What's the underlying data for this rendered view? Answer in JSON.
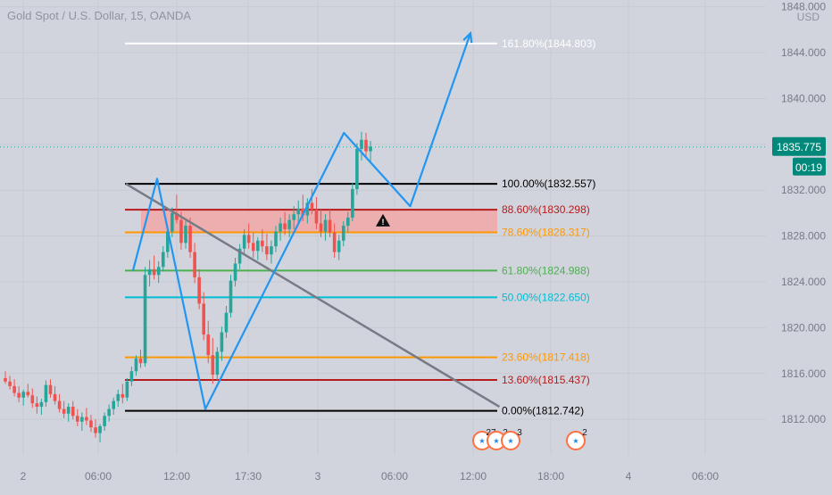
{
  "header": {
    "symbol_title": "Gold Spot / U.S. Dollar, 15, OANDA",
    "currency": "USD"
  },
  "price_tag": {
    "price": "1835.775",
    "countdown": "00:19",
    "color": "#00897b"
  },
  "chart_data": {
    "type": "candlestick",
    "title": "Gold Spot / U.S. Dollar, 15, OANDA",
    "ylim": [
      1809.5,
      1848.3
    ],
    "y_ticks": [
      1812,
      1816,
      1820,
      1824,
      1828,
      1832,
      1836,
      1840,
      1844,
      1848
    ],
    "y_tick_labels": [
      "1812.000",
      "1816.000",
      "1820.000",
      "1824.000",
      "1828.000",
      "1832.000",
      "1836.000",
      "1840.000",
      "1844.000",
      "1848.000"
    ],
    "x_labels": [
      "2",
      "06:00",
      "12:00",
      "17:30",
      "3",
      "06:00",
      "12:00",
      "18:00",
      "4",
      "06:00"
    ],
    "last_price": 1835.775,
    "fib_levels": [
      {
        "label": "161.80%(1844.803)",
        "value": 1844.803,
        "color": "#ffffff"
      },
      {
        "label": "100.00%(1832.557)",
        "value": 1832.557,
        "color": "#000000"
      },
      {
        "label": "88.60%(1830.298)",
        "value": 1830.298,
        "color": "#b71c1c"
      },
      {
        "label": "78.60%(1828.317)",
        "value": 1828.317,
        "color": "#ff9800"
      },
      {
        "label": "61.80%(1824.988)",
        "value": 1824.988,
        "color": "#4caf50"
      },
      {
        "label": "50.00%(1822.650)",
        "value": 1822.65,
        "color": "#00bcd4"
      },
      {
        "label": "23.60%(1817.418)",
        "value": 1817.418,
        "color": "#ff9800"
      },
      {
        "label": "13.60%(1815.437)",
        "value": 1815.437,
        "color": "#b71c1c"
      },
      {
        "label": "0.00%(1812.742)",
        "value": 1812.742,
        "color": "#000000"
      }
    ],
    "zone": {
      "from": 1828.317,
      "to": 1830.298,
      "color": "#f4a4a4"
    },
    "projection_path": [
      {
        "bar": 0,
        "price": 1825.0
      },
      {
        "bar": 4,
        "price": 1833.0
      },
      {
        "bar": 12,
        "price": 1812.9
      },
      {
        "bar": 35,
        "price": 1837.0
      },
      {
        "bar": 46,
        "price": 1830.6
      },
      {
        "bar": 56,
        "price": 1845.7
      }
    ],
    "trendline": [
      {
        "bar": 0,
        "price": 1832.557
      },
      {
        "bar": 62,
        "price": 1813.1
      }
    ],
    "candles": [
      {
        "o": 1815.6,
        "h": 1816.2,
        "l": 1815.1,
        "c": 1815.3
      },
      {
        "o": 1815.3,
        "h": 1815.8,
        "l": 1814.6,
        "c": 1814.9
      },
      {
        "o": 1814.9,
        "h": 1815.5,
        "l": 1814.0,
        "c": 1814.3
      },
      {
        "o": 1814.3,
        "h": 1814.9,
        "l": 1813.5,
        "c": 1813.9
      },
      {
        "o": 1813.9,
        "h": 1814.6,
        "l": 1813.2,
        "c": 1814.4
      },
      {
        "o": 1814.4,
        "h": 1815.1,
        "l": 1813.9,
        "c": 1814.1
      },
      {
        "o": 1814.1,
        "h": 1814.7,
        "l": 1813.0,
        "c": 1813.4
      },
      {
        "o": 1813.4,
        "h": 1814.0,
        "l": 1812.5,
        "c": 1813.1
      },
      {
        "o": 1813.1,
        "h": 1813.8,
        "l": 1812.4,
        "c": 1813.5
      },
      {
        "o": 1813.5,
        "h": 1815.4,
        "l": 1813.1,
        "c": 1815.0
      },
      {
        "o": 1815.0,
        "h": 1815.5,
        "l": 1813.9,
        "c": 1814.2
      },
      {
        "o": 1814.2,
        "h": 1814.9,
        "l": 1813.3,
        "c": 1813.6
      },
      {
        "o": 1813.6,
        "h": 1814.2,
        "l": 1812.6,
        "c": 1812.9
      },
      {
        "o": 1812.9,
        "h": 1813.6,
        "l": 1812.1,
        "c": 1812.5
      },
      {
        "o": 1812.5,
        "h": 1813.4,
        "l": 1811.8,
        "c": 1813.1
      },
      {
        "o": 1813.1,
        "h": 1813.6,
        "l": 1812.0,
        "c": 1812.3
      },
      {
        "o": 1812.3,
        "h": 1812.9,
        "l": 1811.4,
        "c": 1811.8
      },
      {
        "o": 1811.8,
        "h": 1812.6,
        "l": 1811.0,
        "c": 1812.2
      },
      {
        "o": 1812.2,
        "h": 1813.0,
        "l": 1811.5,
        "c": 1811.9
      },
      {
        "o": 1811.9,
        "h": 1812.4,
        "l": 1810.9,
        "c": 1811.3
      },
      {
        "o": 1811.3,
        "h": 1812.0,
        "l": 1810.4,
        "c": 1810.8
      },
      {
        "o": 1810.8,
        "h": 1811.6,
        "l": 1810.0,
        "c": 1811.4
      },
      {
        "o": 1811.4,
        "h": 1812.6,
        "l": 1811.0,
        "c": 1812.3
      },
      {
        "o": 1812.3,
        "h": 1813.3,
        "l": 1811.8,
        "c": 1812.9
      },
      {
        "o": 1812.9,
        "h": 1813.9,
        "l": 1812.4,
        "c": 1813.6
      },
      {
        "o": 1813.6,
        "h": 1814.6,
        "l": 1813.1,
        "c": 1814.2
      },
      {
        "o": 1814.2,
        "h": 1815.1,
        "l": 1813.4,
        "c": 1813.9
      },
      {
        "o": 1813.9,
        "h": 1815.6,
        "l": 1813.6,
        "c": 1815.3
      },
      {
        "o": 1815.3,
        "h": 1816.6,
        "l": 1814.9,
        "c": 1816.2
      },
      {
        "o": 1816.2,
        "h": 1817.6,
        "l": 1815.8,
        "c": 1817.3
      },
      {
        "o": 1817.3,
        "h": 1818.1,
        "l": 1816.5,
        "c": 1816.9
      },
      {
        "o": 1816.9,
        "h": 1825.3,
        "l": 1816.6,
        "c": 1824.6
      },
      {
        "o": 1824.6,
        "h": 1825.9,
        "l": 1823.6,
        "c": 1825.1
      },
      {
        "o": 1825.1,
        "h": 1826.3,
        "l": 1824.2,
        "c": 1824.6
      },
      {
        "o": 1824.6,
        "h": 1825.8,
        "l": 1823.9,
        "c": 1825.3
      },
      {
        "o": 1825.3,
        "h": 1827.1,
        "l": 1824.9,
        "c": 1826.6
      },
      {
        "o": 1826.6,
        "h": 1828.9,
        "l": 1826.1,
        "c": 1828.4
      },
      {
        "o": 1828.4,
        "h": 1830.5,
        "l": 1827.9,
        "c": 1830.0
      },
      {
        "o": 1830.0,
        "h": 1831.6,
        "l": 1829.1,
        "c": 1829.4
      },
      {
        "o": 1829.4,
        "h": 1830.1,
        "l": 1826.8,
        "c": 1827.4
      },
      {
        "o": 1827.4,
        "h": 1829.3,
        "l": 1826.9,
        "c": 1828.9
      },
      {
        "o": 1828.9,
        "h": 1829.6,
        "l": 1826.1,
        "c": 1826.6
      },
      {
        "o": 1826.6,
        "h": 1827.4,
        "l": 1823.9,
        "c": 1824.4
      },
      {
        "o": 1824.4,
        "h": 1825.1,
        "l": 1821.6,
        "c": 1822.1
      },
      {
        "o": 1822.1,
        "h": 1823.1,
        "l": 1818.9,
        "c": 1819.4
      },
      {
        "o": 1819.4,
        "h": 1820.6,
        "l": 1816.9,
        "c": 1817.6
      },
      {
        "o": 1817.6,
        "h": 1819.1,
        "l": 1815.1,
        "c": 1815.9
      },
      {
        "o": 1815.9,
        "h": 1818.3,
        "l": 1815.4,
        "c": 1817.9
      },
      {
        "o": 1817.9,
        "h": 1820.1,
        "l": 1817.1,
        "c": 1819.6
      },
      {
        "o": 1819.6,
        "h": 1821.9,
        "l": 1819.1,
        "c": 1821.3
      },
      {
        "o": 1821.3,
        "h": 1824.6,
        "l": 1820.9,
        "c": 1824.1
      },
      {
        "o": 1824.1,
        "h": 1826.1,
        "l": 1823.6,
        "c": 1825.6
      },
      {
        "o": 1825.6,
        "h": 1827.3,
        "l": 1825.1,
        "c": 1826.9
      },
      {
        "o": 1826.9,
        "h": 1828.6,
        "l": 1826.4,
        "c": 1828.1
      },
      {
        "o": 1828.1,
        "h": 1829.1,
        "l": 1826.9,
        "c": 1827.4
      },
      {
        "o": 1827.4,
        "h": 1828.3,
        "l": 1826.1,
        "c": 1826.7
      },
      {
        "o": 1826.7,
        "h": 1827.9,
        "l": 1825.9,
        "c": 1827.6
      },
      {
        "o": 1827.6,
        "h": 1828.6,
        "l": 1826.6,
        "c": 1827.1
      },
      {
        "o": 1827.1,
        "h": 1828.2,
        "l": 1825.9,
        "c": 1826.4
      },
      {
        "o": 1826.4,
        "h": 1827.6,
        "l": 1825.6,
        "c": 1827.1
      },
      {
        "o": 1827.1,
        "h": 1828.9,
        "l": 1826.6,
        "c": 1828.4
      },
      {
        "o": 1828.4,
        "h": 1829.6,
        "l": 1827.6,
        "c": 1829.1
      },
      {
        "o": 1829.1,
        "h": 1830.1,
        "l": 1828.1,
        "c": 1828.6
      },
      {
        "o": 1828.6,
        "h": 1829.9,
        "l": 1827.9,
        "c": 1829.4
      },
      {
        "o": 1829.4,
        "h": 1830.6,
        "l": 1828.6,
        "c": 1829.9
      },
      {
        "o": 1829.9,
        "h": 1831.1,
        "l": 1829.1,
        "c": 1830.4
      },
      {
        "o": 1830.4,
        "h": 1831.6,
        "l": 1829.3,
        "c": 1829.8
      },
      {
        "o": 1829.8,
        "h": 1831.3,
        "l": 1829.1,
        "c": 1830.9
      },
      {
        "o": 1830.9,
        "h": 1832.1,
        "l": 1829.9,
        "c": 1830.3
      },
      {
        "o": 1830.3,
        "h": 1831.4,
        "l": 1828.6,
        "c": 1829.1
      },
      {
        "o": 1829.1,
        "h": 1830.3,
        "l": 1827.9,
        "c": 1828.4
      },
      {
        "o": 1828.4,
        "h": 1829.9,
        "l": 1827.6,
        "c": 1829.4
      },
      {
        "o": 1829.4,
        "h": 1830.3,
        "l": 1827.9,
        "c": 1828.3
      },
      {
        "o": 1828.3,
        "h": 1829.1,
        "l": 1826.1,
        "c": 1826.6
      },
      {
        "o": 1826.6,
        "h": 1828.1,
        "l": 1825.9,
        "c": 1827.6
      },
      {
        "o": 1827.6,
        "h": 1829.3,
        "l": 1827.1,
        "c": 1828.9
      },
      {
        "o": 1828.9,
        "h": 1830.1,
        "l": 1828.3,
        "c": 1829.6
      },
      {
        "o": 1829.6,
        "h": 1832.6,
        "l": 1829.3,
        "c": 1832.1
      },
      {
        "o": 1832.1,
        "h": 1836.1,
        "l": 1831.6,
        "c": 1835.6
      },
      {
        "o": 1835.6,
        "h": 1837.1,
        "l": 1834.6,
        "c": 1836.4
      },
      {
        "o": 1836.4,
        "h": 1837.0,
        "l": 1834.9,
        "c": 1835.4
      },
      {
        "o": 1835.4,
        "h": 1836.3,
        "l": 1834.4,
        "c": 1835.8
      }
    ],
    "events": [
      {
        "label": "27"
      },
      {
        "label": "2"
      },
      {
        "label": "3"
      },
      {
        "label": "2"
      }
    ]
  }
}
